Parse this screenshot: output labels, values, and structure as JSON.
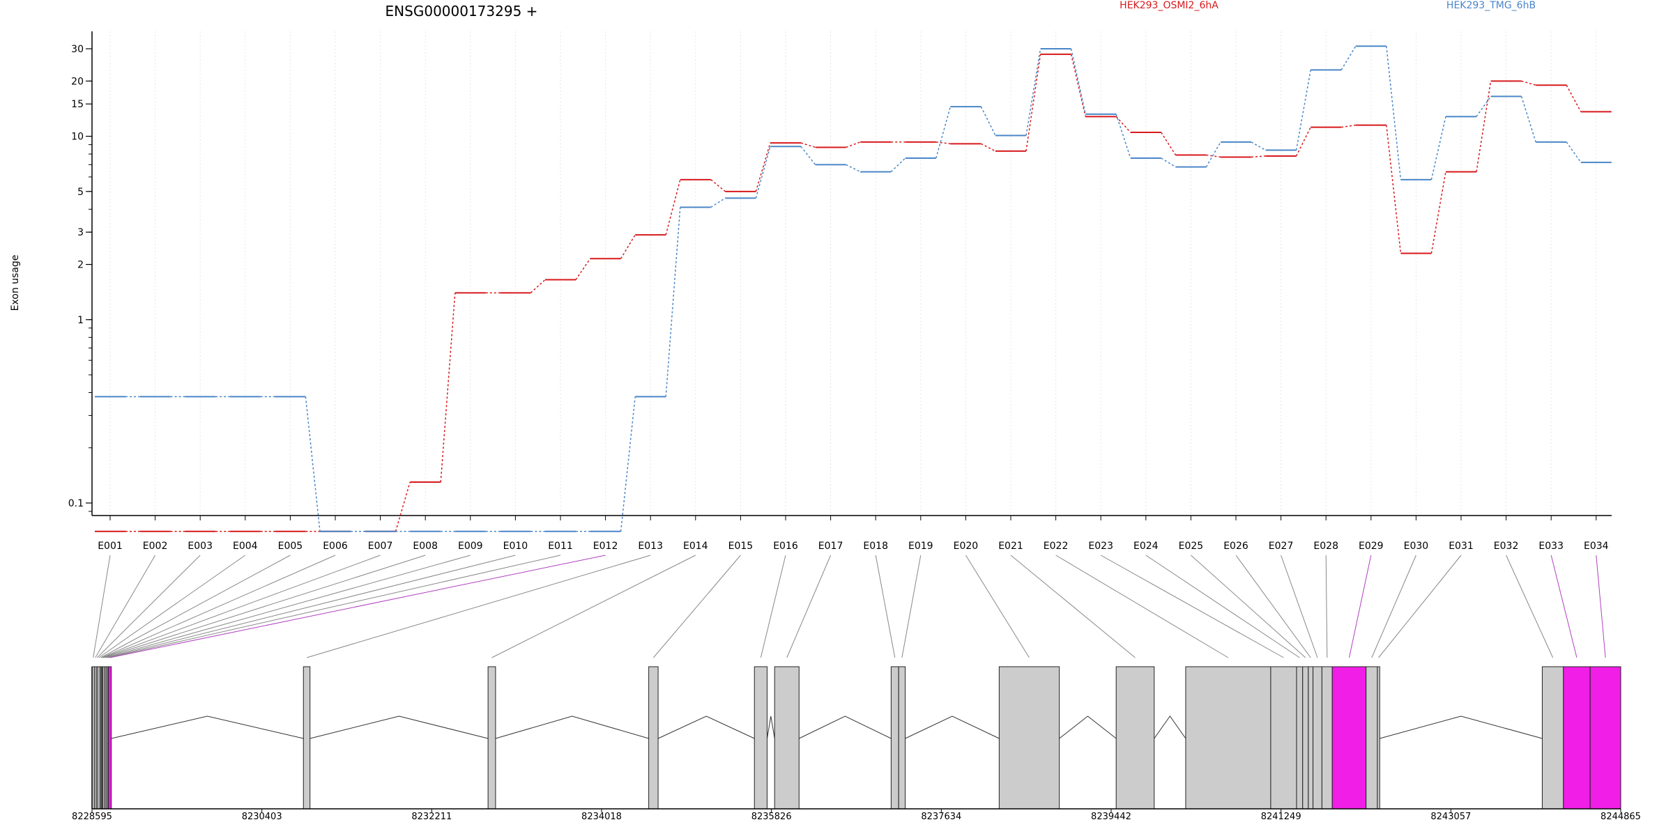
{
  "chart_data": {
    "type": "line",
    "title": "ENSG00000173295 +",
    "ylabel": "Exon usage",
    "y_scale": "log",
    "y_ticks": [
      0.1,
      1,
      2,
      3,
      5,
      10,
      15,
      20,
      30
    ],
    "grid": "vertical-dotted",
    "legend": "top-right",
    "categories": [
      "E001",
      "E002",
      "E003",
      "E004",
      "E005",
      "E006",
      "E007",
      "E008",
      "E009",
      "E010",
      "E011",
      "E012",
      "E013",
      "E014",
      "E015",
      "E016",
      "E017",
      "E018",
      "E019",
      "E020",
      "E021",
      "E022",
      "E023",
      "E024",
      "E025",
      "E026",
      "E027",
      "E028",
      "E029",
      "E030",
      "E031",
      "E032",
      "E033",
      "E034"
    ],
    "series": [
      {
        "name": "HEK293_OSMI2_6hA",
        "color": "#d7191c",
        "values": [
          0.07,
          0.07,
          0.07,
          0.07,
          0.07,
          0.07,
          0.07,
          0.13,
          1.4,
          1.4,
          1.65,
          2.15,
          2.9,
          5.8,
          5.0,
          9.2,
          8.7,
          9.3,
          9.3,
          9.1,
          8.3,
          28,
          12.8,
          10.5,
          7.9,
          7.7,
          7.8,
          11.2,
          11.5,
          2.3,
          6.4,
          20,
          19,
          13.6
        ]
      },
      {
        "name": "HEK293_TMG_6hB",
        "color": "#4a86c8",
        "values": [
          0.38,
          0.38,
          0.38,
          0.38,
          0.38,
          0.07,
          0.07,
          0.07,
          0.07,
          0.07,
          0.07,
          0.07,
          0.38,
          4.1,
          4.6,
          8.8,
          7.0,
          6.4,
          7.6,
          14.5,
          10.1,
          30,
          13.2,
          7.6,
          6.8,
          9.3,
          8.4,
          23,
          31,
          5.8,
          12.8,
          16.5,
          9.3,
          7.2
        ]
      }
    ],
    "genomic_axis": {
      "start": 8228595,
      "end": 8244865,
      "tick_labels": [
        "8228595",
        "8230403",
        "8232211",
        "8234018",
        "8235826",
        "8237634",
        "8239442",
        "8241249",
        "8243057",
        "8244865"
      ]
    },
    "exons": [
      {
        "id": "E001",
        "start": 8228595,
        "end": 8228620,
        "highlight": false
      },
      {
        "id": "E002",
        "start": 8228620,
        "end": 8228640,
        "highlight": false
      },
      {
        "id": "E003",
        "start": 8228640,
        "end": 8228655,
        "highlight": false
      },
      {
        "id": "E004",
        "start": 8228655,
        "end": 8228680,
        "highlight": false
      },
      {
        "id": "E005",
        "start": 8228680,
        "end": 8228692,
        "highlight": false
      },
      {
        "id": "E006",
        "start": 8228692,
        "end": 8228700,
        "highlight": false
      },
      {
        "id": "E007",
        "start": 8228700,
        "end": 8228710,
        "highlight": false
      },
      {
        "id": "E008",
        "start": 8228710,
        "end": 8228730,
        "highlight": false
      },
      {
        "id": "E009",
        "start": 8228730,
        "end": 8228745,
        "highlight": false
      },
      {
        "id": "E010",
        "start": 8228745,
        "end": 8228760,
        "highlight": false
      },
      {
        "id": "E011",
        "start": 8228760,
        "end": 8228770,
        "highlight": false
      },
      {
        "id": "E012",
        "start": 8228770,
        "end": 8228800,
        "highlight": true
      },
      {
        "id": "E013",
        "start": 8230845,
        "end": 8230915,
        "highlight": false
      },
      {
        "id": "E014",
        "start": 8232810,
        "end": 8232890,
        "highlight": false
      },
      {
        "id": "E015",
        "start": 8234520,
        "end": 8234620,
        "highlight": false
      },
      {
        "id": "E016",
        "start": 8235645,
        "end": 8235780,
        "highlight": false
      },
      {
        "id": "E017",
        "start": 8235860,
        "end": 8236120,
        "highlight": false
      },
      {
        "id": "E018",
        "start": 8237100,
        "end": 8237180,
        "highlight": false
      },
      {
        "id": "E019",
        "start": 8237180,
        "end": 8237250,
        "highlight": false
      },
      {
        "id": "E020",
        "start": 8238250,
        "end": 8238890,
        "highlight": false
      },
      {
        "id": "E021",
        "start": 8239495,
        "end": 8239900,
        "highlight": false
      },
      {
        "id": "E022",
        "start": 8240235,
        "end": 8241140,
        "highlight": false
      },
      {
        "id": "E023",
        "start": 8241140,
        "end": 8241415,
        "highlight": false
      },
      {
        "id": "E024",
        "start": 8241415,
        "end": 8241480,
        "highlight": false
      },
      {
        "id": "E025",
        "start": 8241480,
        "end": 8241540,
        "highlight": false
      },
      {
        "id": "E026",
        "start": 8241540,
        "end": 8241590,
        "highlight": false
      },
      {
        "id": "E027",
        "start": 8241590,
        "end": 8241685,
        "highlight": false
      },
      {
        "id": "E028",
        "start": 8241685,
        "end": 8241795,
        "highlight": false
      },
      {
        "id": "E029",
        "start": 8241795,
        "end": 8242155,
        "highlight": true
      },
      {
        "id": "E030",
        "start": 8242155,
        "end": 8242275,
        "highlight": false
      },
      {
        "id": "E031",
        "start": 8242275,
        "end": 8242300,
        "highlight": false
      },
      {
        "id": "E032",
        "start": 8244030,
        "end": 8244255,
        "highlight": false
      },
      {
        "id": "E033",
        "start": 8244255,
        "end": 8244540,
        "highlight": true
      },
      {
        "id": "E034",
        "start": 8244540,
        "end": 8244865,
        "highlight": true
      }
    ],
    "introns": [
      {
        "start": 8228800,
        "end": 8230845
      },
      {
        "start": 8230915,
        "end": 8232810
      },
      {
        "start": 8232890,
        "end": 8234520
      },
      {
        "start": 8234620,
        "end": 8235645
      },
      {
        "start": 8235780,
        "end": 8235860
      },
      {
        "start": 8236120,
        "end": 8237100
      },
      {
        "start": 8237250,
        "end": 8238250
      },
      {
        "start": 8238890,
        "end": 8239495
      },
      {
        "start": 8239900,
        "end": 8240235
      },
      {
        "start": 8242300,
        "end": 8244030
      }
    ]
  }
}
